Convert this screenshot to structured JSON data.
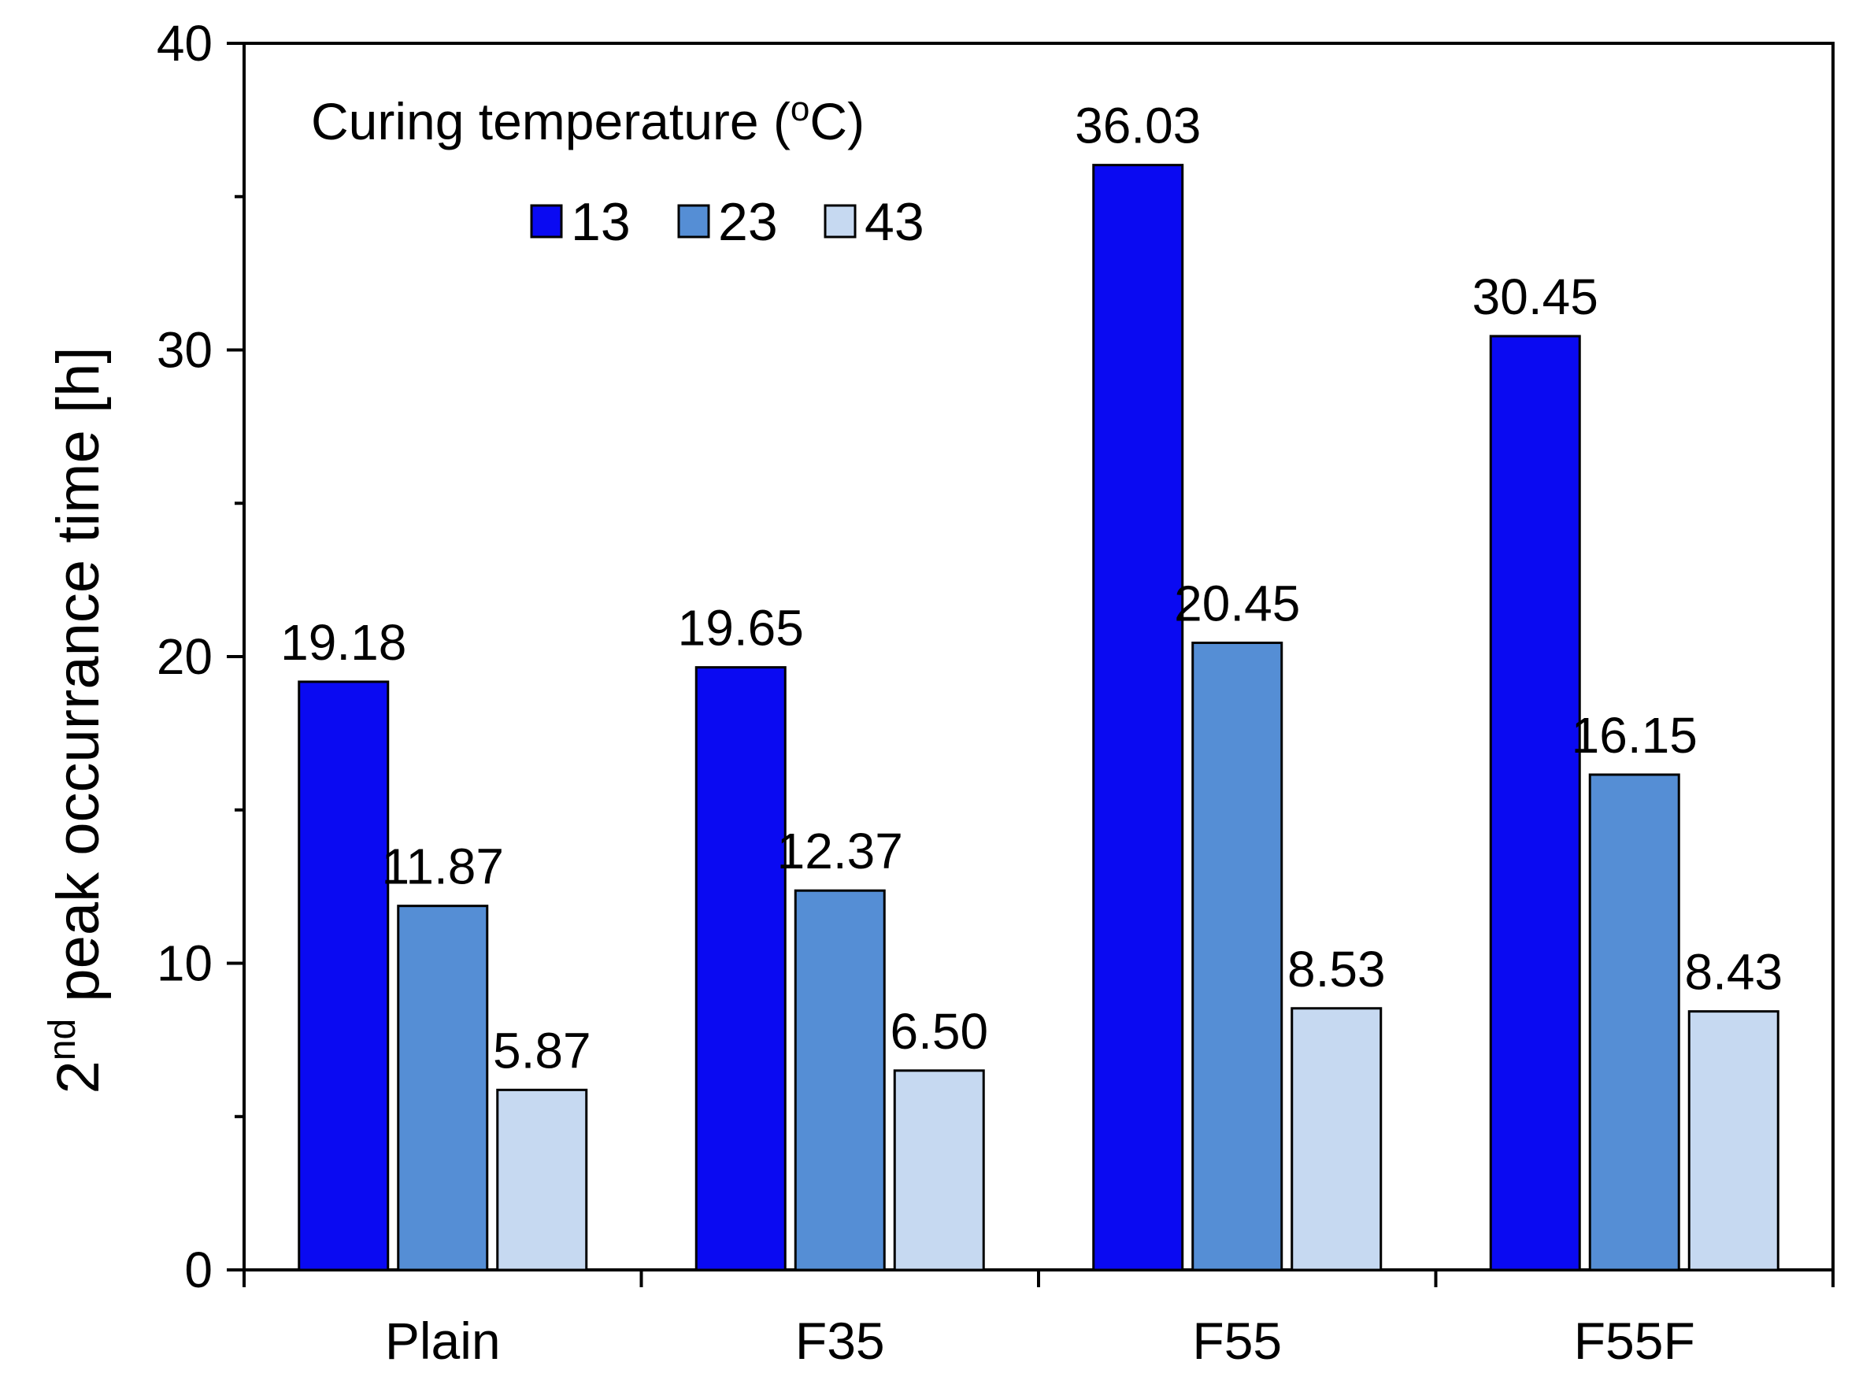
{
  "chart_data": {
    "type": "bar",
    "categories": [
      "Plain",
      "F35",
      "F55",
      "F55F"
    ],
    "series": [
      {
        "name": "13",
        "values": [
          19.18,
          19.65,
          36.03,
          30.45
        ],
        "labels": [
          "19.18",
          "19.65",
          "36.03",
          "30.45"
        ],
        "color": "#0a0af2"
      },
      {
        "name": "23",
        "values": [
          11.87,
          12.37,
          20.45,
          16.15
        ],
        "labels": [
          "11.87",
          "12.37",
          "20.45",
          "16.15"
        ],
        "color": "#558ed5"
      },
      {
        "name": "43",
        "values": [
          5.87,
          6.5,
          8.53,
          8.43
        ],
        "labels": [
          "5.87",
          "6.50",
          "8.53",
          "8.43"
        ],
        "color": "#c6d9f1"
      }
    ],
    "ylabel": {
      "base": "2",
      "superscript": "nd",
      "rest": " peak occurrance time [h]"
    },
    "xlabel": "",
    "ylim": [
      0,
      40
    ],
    "yticks": [
      "0",
      "10",
      "20",
      "30",
      "40"
    ],
    "grid": false,
    "legend": {
      "title_prefix": "Curing temperature (",
      "title_superscript": "o",
      "title_suffix": "C)",
      "position": "top-left"
    }
  }
}
